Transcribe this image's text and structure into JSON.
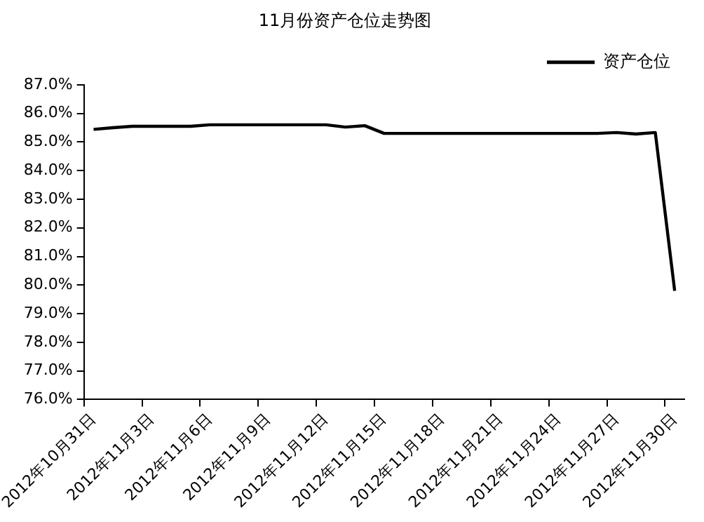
{
  "chart_data": {
    "type": "line",
    "title": "11月份资产仓位走势图",
    "categories": [
      "2012年10月31日",
      null,
      null,
      "2012年11月3日",
      null,
      null,
      "2012年11月6日",
      null,
      null,
      "2012年11月9日",
      null,
      null,
      "2012年11月12日",
      null,
      null,
      "2012年11月15日",
      null,
      null,
      "2012年11月18日",
      null,
      null,
      "2012年11月21日",
      null,
      null,
      "2012年11月24日",
      null,
      null,
      "2012年11月27日",
      null,
      null,
      "2012年11月30日"
    ],
    "series": [
      {
        "name": "资产仓位",
        "color": "#000000",
        "values": [
          85.44,
          85.5,
          85.55,
          85.55,
          85.55,
          85.55,
          85.6,
          85.6,
          85.6,
          85.6,
          85.6,
          85.6,
          85.6,
          85.52,
          85.57,
          85.3,
          85.3,
          85.3,
          85.3,
          85.3,
          85.3,
          85.3,
          85.3,
          85.3,
          85.3,
          85.3,
          85.3,
          85.33,
          85.28,
          85.33,
          79.8
        ]
      }
    ],
    "ylim": [
      76,
      87
    ],
    "yticks": [
      {
        "value": 76,
        "label": "76.0%"
      },
      {
        "value": 77,
        "label": "77.0%"
      },
      {
        "value": 78,
        "label": "78.0%"
      },
      {
        "value": 79,
        "label": "79.0%"
      },
      {
        "value": 80,
        "label": "80.0%"
      },
      {
        "value": 81,
        "label": "81.0%"
      },
      {
        "value": 82,
        "label": "82.0%"
      },
      {
        "value": 83,
        "label": "83.0%"
      },
      {
        "value": 84,
        "label": "84.0%"
      },
      {
        "value": 85,
        "label": "85.0%"
      },
      {
        "value": 86,
        "label": "86.0%"
      },
      {
        "value": 87,
        "label": "87.0%"
      }
    ],
    "grid": false,
    "legend": "top right",
    "marker": "none",
    "line_style": "solid"
  }
}
